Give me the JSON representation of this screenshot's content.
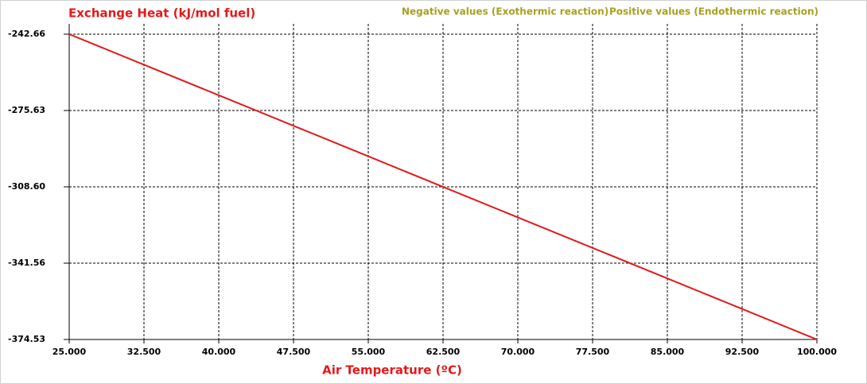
{
  "chart_data": {
    "type": "line",
    "title": "Exchange Heat (kJ/mol fuel)",
    "x_label": "Air Temperature (ºC)",
    "annotations": [
      "Negative values (Exothermic reaction)",
      "Positive values (Endothermic reaction)"
    ],
    "x": [
      25,
      32.5,
      40,
      47.5,
      55,
      62.5,
      70,
      77.5,
      85,
      92.5,
      100
    ],
    "series": [
      {
        "name": "Exchange Heat",
        "color": "#e01b1b",
        "values": [
          -242.66,
          -255.85,
          -269.03,
          -282.22,
          -295.41,
          -308.6,
          -321.78,
          -334.97,
          -348.16,
          -361.34,
          -374.53
        ]
      }
    ],
    "xlim": [
      25,
      100
    ],
    "ylim": [
      -374.53,
      -242.66
    ],
    "xticks": [
      {
        "value": 25,
        "label": "25.000"
      },
      {
        "value": 32.5,
        "label": "32.500"
      },
      {
        "value": 40,
        "label": "40.000"
      },
      {
        "value": 47.5,
        "label": "47.500"
      },
      {
        "value": 55,
        "label": "55.000"
      },
      {
        "value": 62.5,
        "label": "62.500"
      },
      {
        "value": 70,
        "label": "70.000"
      },
      {
        "value": 77.5,
        "label": "77.500"
      },
      {
        "value": 85,
        "label": "85.000"
      },
      {
        "value": 92.5,
        "label": "92.500"
      },
      {
        "value": 100,
        "label": "100.000"
      }
    ],
    "yticks": [
      -242.66,
      -275.63,
      {
        "value": -308.6,
        "label": "-308.60"
      },
      -341.56,
      -374.53
    ],
    "grid": true
  }
}
